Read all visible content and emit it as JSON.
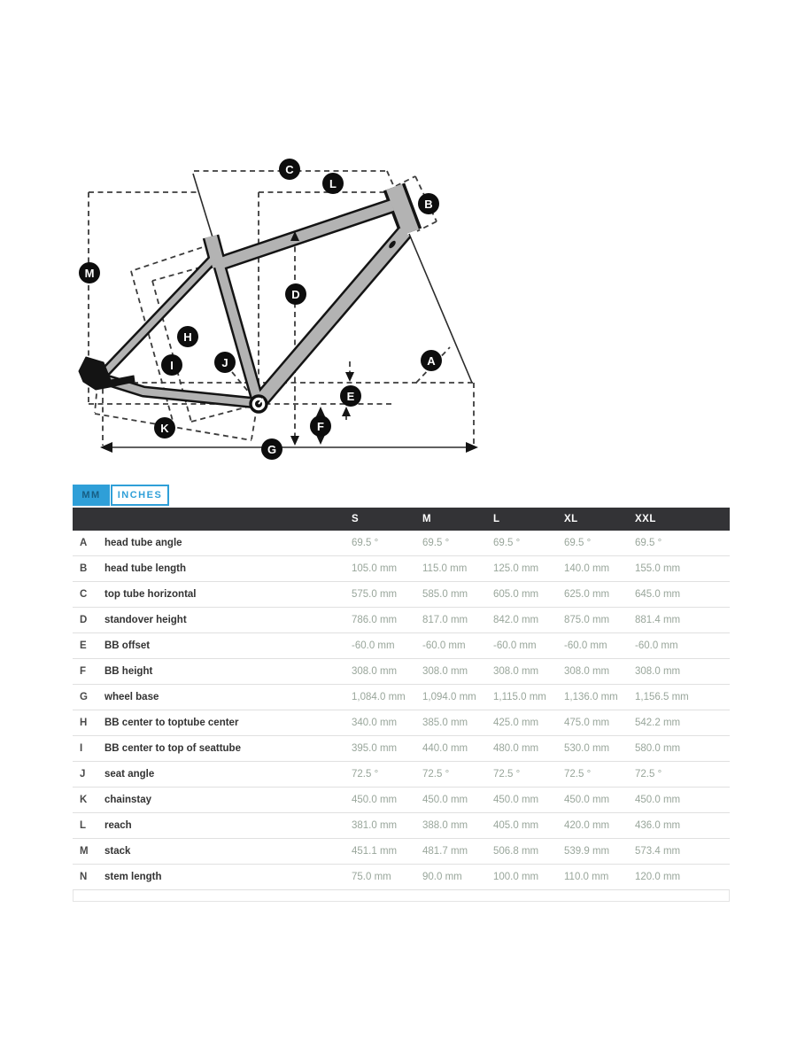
{
  "tabs": {
    "mm": "MM",
    "inches": "INCHES"
  },
  "diagram": {
    "labels": [
      "A",
      "B",
      "C",
      "D",
      "E",
      "F",
      "G",
      "H",
      "I",
      "J",
      "K",
      "L",
      "M"
    ],
    "bb_marker": "bottom-bracket"
  },
  "table": {
    "columns": [
      "S",
      "M",
      "L",
      "XL",
      "XXL"
    ],
    "rows": [
      {
        "letter": "A",
        "label": "head tube angle",
        "values": [
          "69.5 °",
          "69.5 °",
          "69.5 °",
          "69.5 °",
          "69.5 °"
        ]
      },
      {
        "letter": "B",
        "label": "head tube length",
        "values": [
          "105.0 mm",
          "115.0 mm",
          "125.0 mm",
          "140.0 mm",
          "155.0 mm"
        ]
      },
      {
        "letter": "C",
        "label": "top tube horizontal",
        "values": [
          "575.0 mm",
          "585.0 mm",
          "605.0 mm",
          "625.0 mm",
          "645.0 mm"
        ]
      },
      {
        "letter": "D",
        "label": "standover height",
        "values": [
          "786.0 mm",
          "817.0 mm",
          "842.0 mm",
          "875.0 mm",
          "881.4 mm"
        ]
      },
      {
        "letter": "E",
        "label": "BB offset",
        "values": [
          "-60.0 mm",
          "-60.0 mm",
          "-60.0 mm",
          "-60.0 mm",
          "-60.0 mm"
        ]
      },
      {
        "letter": "F",
        "label": "BB height",
        "values": [
          "308.0 mm",
          "308.0 mm",
          "308.0 mm",
          "308.0 mm",
          "308.0 mm"
        ]
      },
      {
        "letter": "G",
        "label": "wheel base",
        "values": [
          "1,084.0 mm",
          "1,094.0 mm",
          "1,115.0 mm",
          "1,136.0 mm",
          "1,156.5 mm"
        ]
      },
      {
        "letter": "H",
        "label": "BB center to toptube center",
        "values": [
          "340.0 mm",
          "385.0 mm",
          "425.0 mm",
          "475.0 mm",
          "542.2 mm"
        ]
      },
      {
        "letter": "I",
        "label": "BB center to top of seattube",
        "values": [
          "395.0 mm",
          "440.0 mm",
          "480.0 mm",
          "530.0 mm",
          "580.0 mm"
        ]
      },
      {
        "letter": "J",
        "label": "seat angle",
        "values": [
          "72.5 °",
          "72.5 °",
          "72.5 °",
          "72.5 °",
          "72.5 °"
        ]
      },
      {
        "letter": "K",
        "label": "chainstay",
        "values": [
          "450.0 mm",
          "450.0 mm",
          "450.0 mm",
          "450.0 mm",
          "450.0 mm"
        ]
      },
      {
        "letter": "L",
        "label": "reach",
        "values": [
          "381.0 mm",
          "388.0 mm",
          "405.0 mm",
          "420.0 mm",
          "436.0 mm"
        ]
      },
      {
        "letter": "M",
        "label": "stack",
        "values": [
          "451.1 mm",
          "481.7 mm",
          "506.8 mm",
          "539.9 mm",
          "573.4 mm"
        ]
      },
      {
        "letter": "N",
        "label": "stem length",
        "values": [
          "75.0 mm",
          "90.0 mm",
          "100.0 mm",
          "110.0 mm",
          "120.0 mm"
        ]
      }
    ]
  },
  "colors": {
    "accent": "#2f9fd8",
    "header_bg": "#333336",
    "value_text": "#99a69b",
    "frame_fill": "#b3b3b3"
  }
}
